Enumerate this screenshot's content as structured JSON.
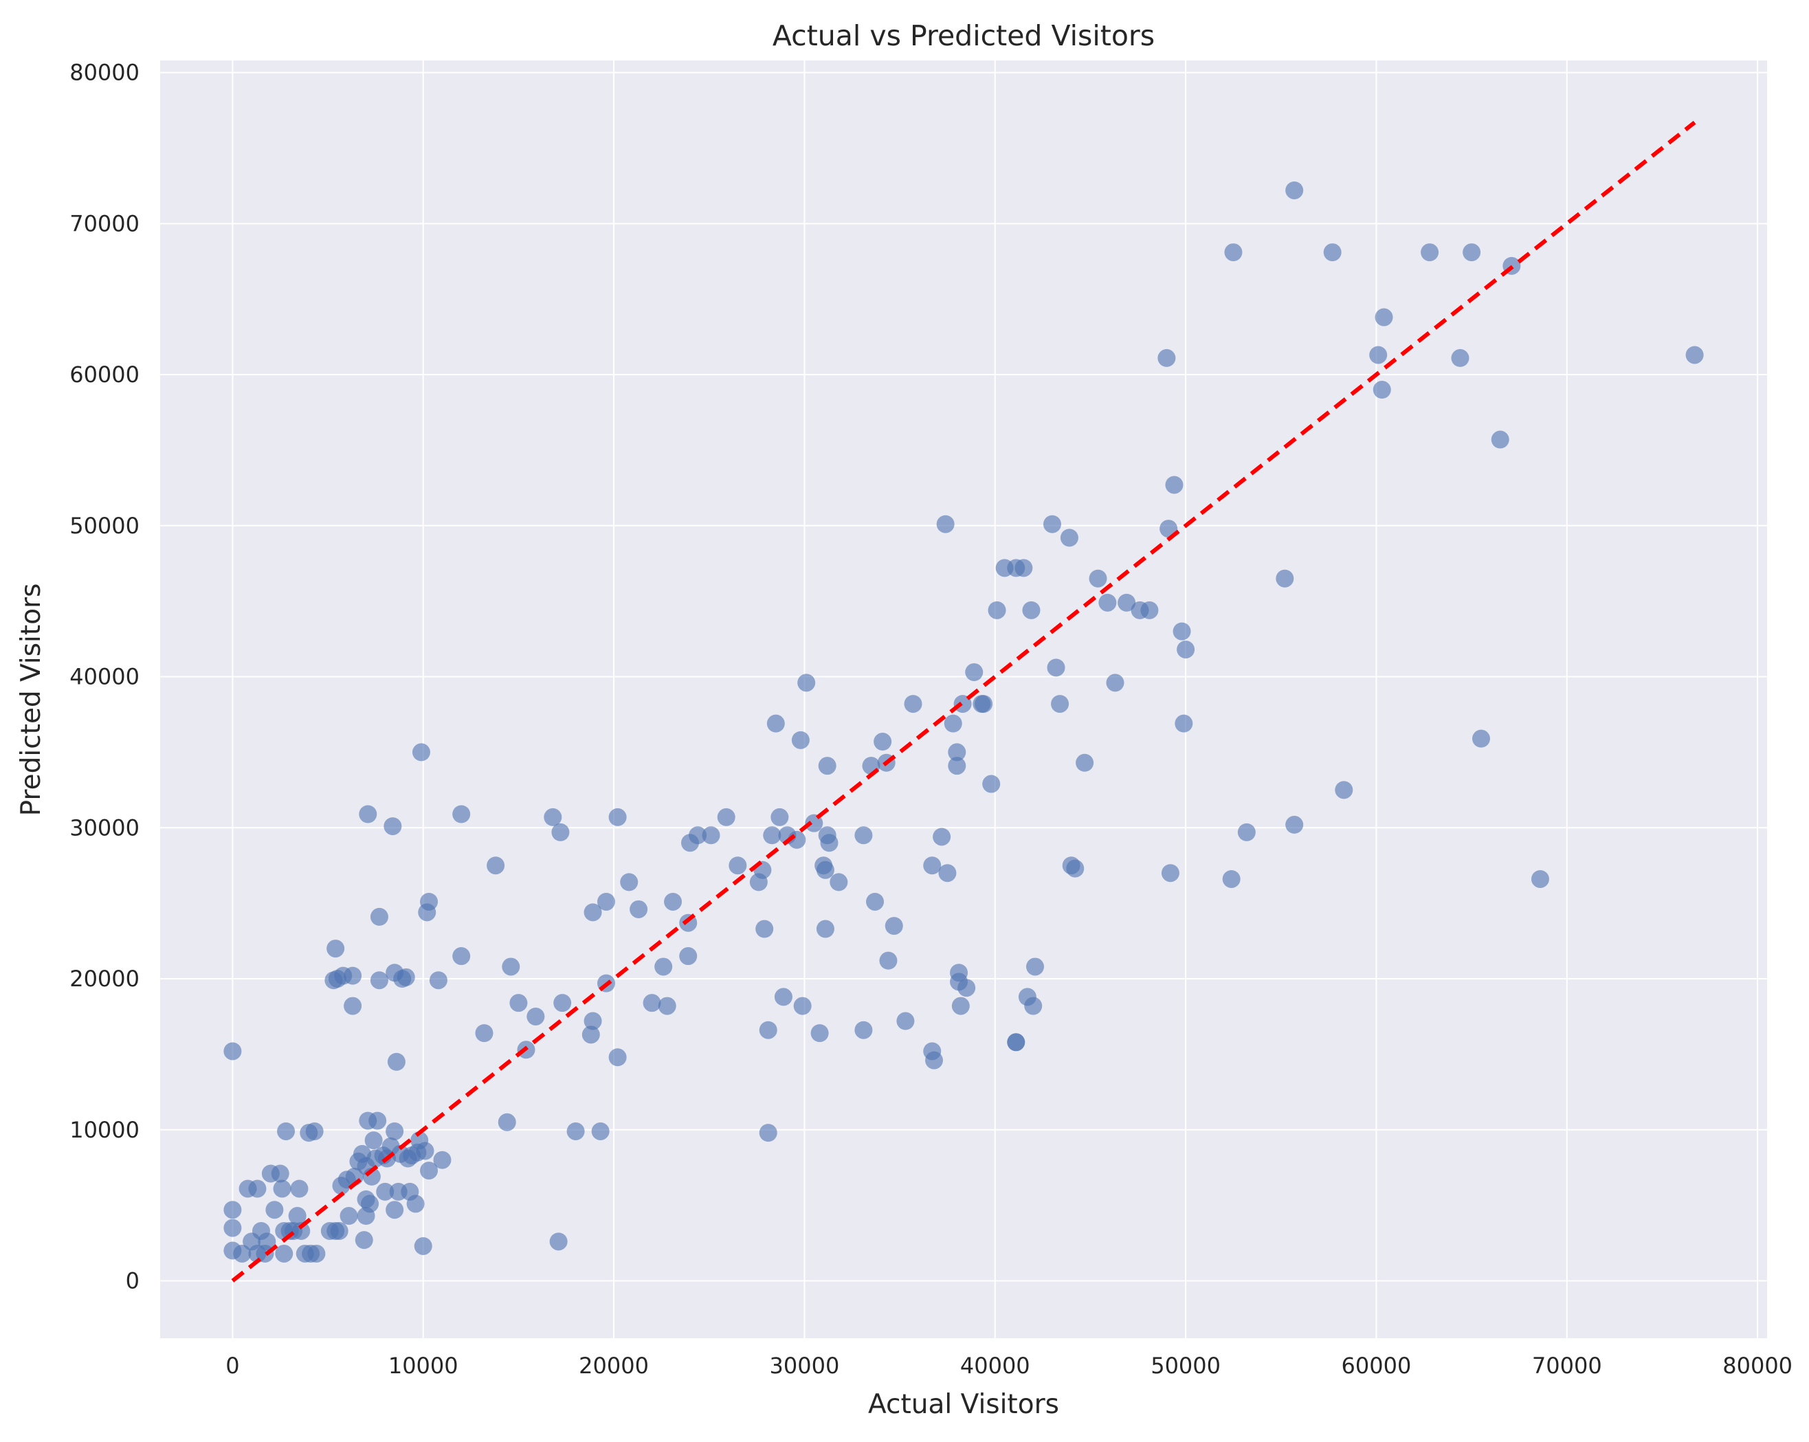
{
  "chart_data": {
    "type": "scatter",
    "title": "Actual vs Predicted Visitors",
    "xlabel": "Actual Visitors",
    "ylabel": "Predicted Visitors",
    "xlim": [
      -3800,
      80500
    ],
    "ylim": [
      -3800,
      80800
    ],
    "xticks": [
      0,
      10000,
      20000,
      30000,
      40000,
      50000,
      60000,
      70000,
      80000
    ],
    "yticks": [
      0,
      10000,
      20000,
      30000,
      40000,
      50000,
      60000,
      70000,
      80000
    ],
    "grid": true,
    "colors": {
      "background": "#eaeaf2",
      "grid": "#ffffff",
      "points": "#4c72b0",
      "reference_line": "#ff0000"
    },
    "reference_line": {
      "style": "dashed",
      "from": [
        0,
        0
      ],
      "to": [
        76700,
        76700
      ]
    },
    "points": [
      [
        0,
        15200
      ],
      [
        0,
        4700
      ],
      [
        0,
        3500
      ],
      [
        0,
        2000
      ],
      [
        500,
        1800
      ],
      [
        800,
        6100
      ],
      [
        1000,
        2600
      ],
      [
        1300,
        1800
      ],
      [
        1300,
        6100
      ],
      [
        1500,
        3300
      ],
      [
        1700,
        1800
      ],
      [
        1800,
        2600
      ],
      [
        2000,
        7100
      ],
      [
        2200,
        4700
      ],
      [
        2500,
        7100
      ],
      [
        2600,
        6100
      ],
      [
        2700,
        3300
      ],
      [
        2700,
        1800
      ],
      [
        2800,
        9900
      ],
      [
        3000,
        3300
      ],
      [
        3200,
        3300
      ],
      [
        3400,
        4300
      ],
      [
        3500,
        6100
      ],
      [
        3600,
        3300
      ],
      [
        3800,
        1800
      ],
      [
        4000,
        9800
      ],
      [
        4100,
        1800
      ],
      [
        4300,
        9900
      ],
      [
        4400,
        1800
      ],
      [
        5100,
        3300
      ],
      [
        5400,
        3300
      ],
      [
        5300,
        19900
      ],
      [
        5400,
        22000
      ],
      [
        5500,
        20000
      ],
      [
        5600,
        3300
      ],
      [
        5700,
        6300
      ],
      [
        5800,
        20200
      ],
      [
        6000,
        6700
      ],
      [
        6100,
        4300
      ],
      [
        6300,
        20200
      ],
      [
        6300,
        18200
      ],
      [
        6400,
        6900
      ],
      [
        6600,
        7900
      ],
      [
        6800,
        8400
      ],
      [
        6900,
        2700
      ],
      [
        7000,
        7600
      ],
      [
        7000,
        5400
      ],
      [
        7000,
        4300
      ],
      [
        7100,
        10600
      ],
      [
        7100,
        30900
      ],
      [
        7200,
        5100
      ],
      [
        7300,
        6900
      ],
      [
        7400,
        9300
      ],
      [
        7500,
        8100
      ],
      [
        7600,
        10600
      ],
      [
        7700,
        24100
      ],
      [
        7700,
        19900
      ],
      [
        7900,
        8300
      ],
      [
        8000,
        5900
      ],
      [
        8100,
        8100
      ],
      [
        8300,
        8900
      ],
      [
        8400,
        30100
      ],
      [
        8500,
        20400
      ],
      [
        8500,
        9900
      ],
      [
        8500,
        4700
      ],
      [
        8600,
        14500
      ],
      [
        8700,
        5900
      ],
      [
        8800,
        8400
      ],
      [
        8900,
        20000
      ],
      [
        9100,
        20100
      ],
      [
        9200,
        8100
      ],
      [
        9300,
        5900
      ],
      [
        9400,
        8300
      ],
      [
        9600,
        5100
      ],
      [
        9700,
        8500
      ],
      [
        9800,
        9300
      ],
      [
        9900,
        35000
      ],
      [
        10000,
        2300
      ],
      [
        10100,
        8600
      ],
      [
        10200,
        24400
      ],
      [
        10300,
        25100
      ],
      [
        10300,
        7300
      ],
      [
        10800,
        19900
      ],
      [
        11000,
        8000
      ],
      [
        12000,
        21500
      ],
      [
        12000,
        30900
      ],
      [
        13200,
        16400
      ],
      [
        13800,
        27500
      ],
      [
        14400,
        10500
      ],
      [
        14600,
        20800
      ],
      [
        15000,
        18400
      ],
      [
        15400,
        15300
      ],
      [
        15900,
        17500
      ],
      [
        16800,
        30700
      ],
      [
        17100,
        2600
      ],
      [
        17200,
        29700
      ],
      [
        17300,
        18400
      ],
      [
        18000,
        9900
      ],
      [
        18800,
        16300
      ],
      [
        18900,
        17200
      ],
      [
        18900,
        24400
      ],
      [
        19300,
        9900
      ],
      [
        19600,
        25100
      ],
      [
        19600,
        19700
      ],
      [
        20200,
        14800
      ],
      [
        20200,
        30700
      ],
      [
        20800,
        26400
      ],
      [
        21300,
        24600
      ],
      [
        22000,
        18400
      ],
      [
        22600,
        20800
      ],
      [
        22800,
        18200
      ],
      [
        23100,
        25100
      ],
      [
        23900,
        23700
      ],
      [
        23900,
        21500
      ],
      [
        24000,
        29000
      ],
      [
        24400,
        29500
      ],
      [
        25100,
        29500
      ],
      [
        25900,
        30700
      ],
      [
        26500,
        27500
      ],
      [
        27600,
        26400
      ],
      [
        27800,
        27200
      ],
      [
        27900,
        23300
      ],
      [
        28100,
        16600
      ],
      [
        28100,
        9800
      ],
      [
        28300,
        29500
      ],
      [
        28500,
        36900
      ],
      [
        28700,
        30700
      ],
      [
        28900,
        18800
      ],
      [
        29100,
        29500
      ],
      [
        29600,
        29200
      ],
      [
        29800,
        35800
      ],
      [
        29900,
        18200
      ],
      [
        30100,
        39600
      ],
      [
        30500,
        30300
      ],
      [
        30800,
        16400
      ],
      [
        31000,
        27500
      ],
      [
        31100,
        27200
      ],
      [
        31200,
        29500
      ],
      [
        31100,
        23300
      ],
      [
        31200,
        34100
      ],
      [
        31300,
        29000
      ],
      [
        31800,
        26400
      ],
      [
        33100,
        29500
      ],
      [
        33100,
        16600
      ],
      [
        33500,
        34100
      ],
      [
        33700,
        25100
      ],
      [
        34100,
        35700
      ],
      [
        34300,
        34300
      ],
      [
        34400,
        21200
      ],
      [
        34700,
        23500
      ],
      [
        35300,
        17200
      ],
      [
        35700,
        38200
      ],
      [
        36700,
        27500
      ],
      [
        36700,
        15200
      ],
      [
        36800,
        14600
      ],
      [
        37200,
        29400
      ],
      [
        37500,
        27000
      ],
      [
        37400,
        50100
      ],
      [
        37800,
        36900
      ],
      [
        38000,
        35000
      ],
      [
        38000,
        34100
      ],
      [
        38100,
        20400
      ],
      [
        38100,
        19800
      ],
      [
        38200,
        18200
      ],
      [
        38300,
        38200
      ],
      [
        38500,
        19400
      ],
      [
        38900,
        40300
      ],
      [
        39300,
        38200
      ],
      [
        39400,
        38200
      ],
      [
        39800,
        32900
      ],
      [
        40100,
        44400
      ],
      [
        40500,
        47200
      ],
      [
        41100,
        15800
      ],
      [
        41100,
        15800
      ],
      [
        41100,
        47200
      ],
      [
        41500,
        47200
      ],
      [
        41700,
        18800
      ],
      [
        41900,
        44400
      ],
      [
        42000,
        18200
      ],
      [
        42100,
        20800
      ],
      [
        43000,
        50100
      ],
      [
        43200,
        40600
      ],
      [
        43400,
        38200
      ],
      [
        43900,
        49200
      ],
      [
        44000,
        27500
      ],
      [
        44200,
        27300
      ],
      [
        44700,
        34300
      ],
      [
        45400,
        46500
      ],
      [
        45900,
        44900
      ],
      [
        46300,
        39600
      ],
      [
        46900,
        44900
      ],
      [
        47600,
        44400
      ],
      [
        48100,
        44400
      ],
      [
        49000,
        61100
      ],
      [
        49100,
        49800
      ],
      [
        49200,
        27000
      ],
      [
        49400,
        52700
      ],
      [
        49800,
        43000
      ],
      [
        49900,
        36900
      ],
      [
        50000,
        41800
      ],
      [
        52400,
        26600
      ],
      [
        52500,
        68100
      ],
      [
        53200,
        29700
      ],
      [
        55200,
        46500
      ],
      [
        55700,
        72200
      ],
      [
        55700,
        30200
      ],
      [
        57700,
        68100
      ],
      [
        58300,
        32500
      ],
      [
        60100,
        61300
      ],
      [
        60300,
        59000
      ],
      [
        60400,
        63800
      ],
      [
        62800,
        68100
      ],
      [
        64400,
        61100
      ],
      [
        65000,
        68100
      ],
      [
        65500,
        35900
      ],
      [
        66500,
        55700
      ],
      [
        67100,
        67200
      ],
      [
        68600,
        26600
      ],
      [
        76700,
        61300
      ]
    ]
  }
}
